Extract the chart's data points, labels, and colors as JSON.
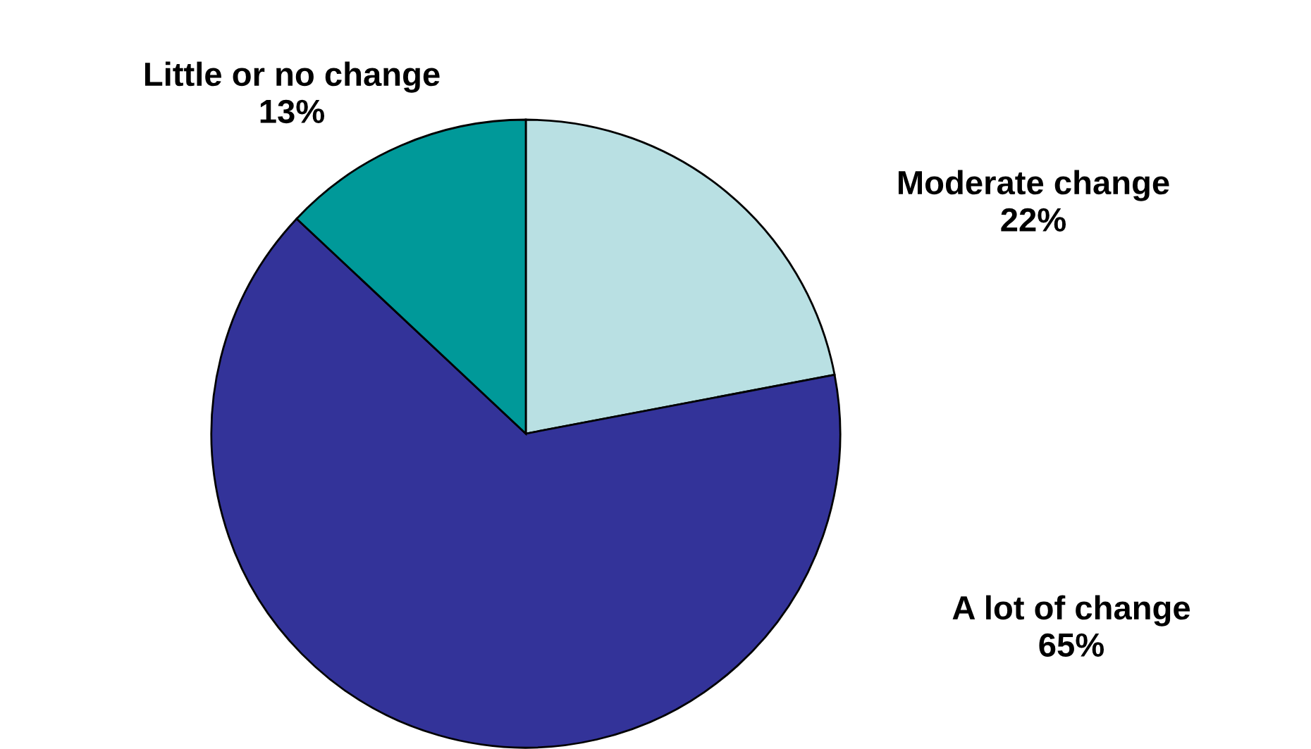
{
  "chart_data": {
    "type": "pie",
    "categories": [
      "Moderate change",
      "A lot of change",
      "Little or no change"
    ],
    "values": [
      22,
      65,
      13
    ],
    "value_labels": [
      "22%",
      "65%",
      "13%"
    ],
    "colors": [
      "#b9e0e3",
      "#333399",
      "#009999"
    ]
  }
}
